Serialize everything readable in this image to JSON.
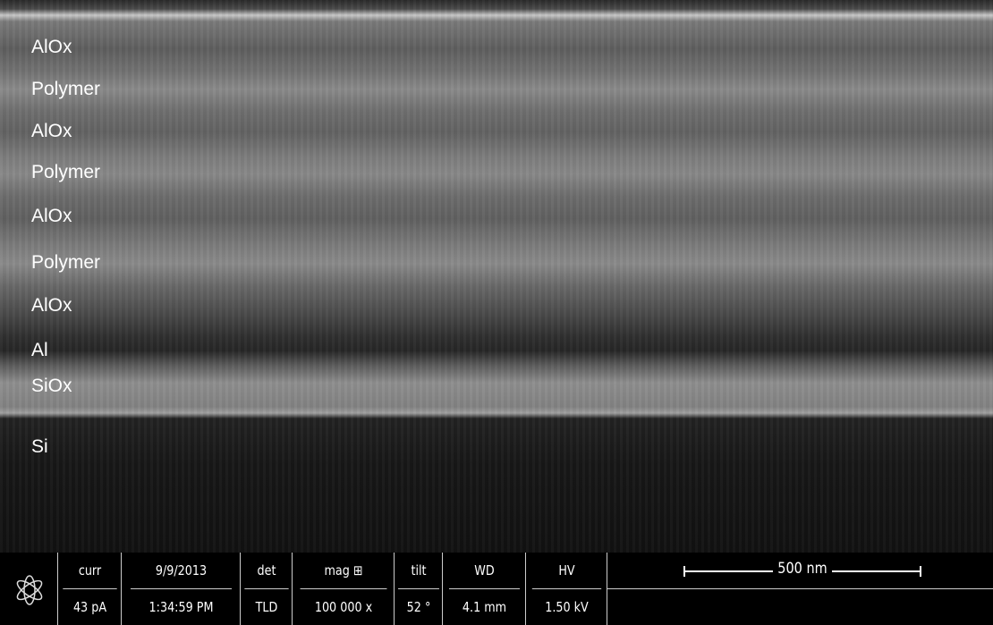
{
  "layers": [
    "AlOx",
    "Polymer",
    "AlOx",
    "Polymer",
    "AlOx",
    "Polymer",
    "AlOx",
    "Al",
    "SiOx",
    "Si"
  ],
  "info_bar": [
    {
      "header": "curr",
      "value": "43 pA"
    },
    {
      "header": "9/9/2013",
      "value": "1:34:59 PM"
    },
    {
      "header": "det",
      "value": "TLD"
    },
    {
      "header": "mag ⊞",
      "value": "100 000 x"
    },
    {
      "header": "tilt",
      "value": "52 °"
    },
    {
      "header": "WD",
      "value": "4.1 mm"
    },
    {
      "header": "HV",
      "value": "1.50 kV"
    }
  ],
  "scale_bar": "500 nm"
}
